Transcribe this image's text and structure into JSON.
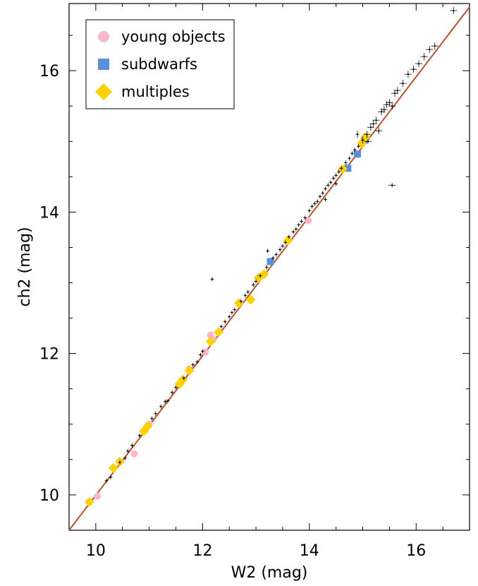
{
  "chart_data": {
    "type": "scatter",
    "title": "",
    "xlabel": "W2  (mag)",
    "ylabel": "ch2 (mag)",
    "xlim": [
      9.5,
      17.0
    ],
    "ylim": [
      9.5,
      16.95
    ],
    "x_ticks": [
      "10",
      "12",
      "14",
      "16"
    ],
    "y_ticks": [
      "10",
      "12",
      "14",
      "16"
    ],
    "grid": false,
    "legend_position": "top-left",
    "colors": {
      "young": "#f9b8c8",
      "subdwarf": "#5b8fdc",
      "multiple": "#ffd000",
      "fit_line": "#b5522a",
      "points": "#000000"
    },
    "fit_line": {
      "x": [
        9.5,
        17.0
      ],
      "y": [
        9.5,
        16.9
      ]
    },
    "series": [
      {
        "name": "young objects",
        "marker": "circle",
        "points": [
          [
            10.03,
            9.98
          ],
          [
            10.72,
            10.58
          ],
          [
            11.0,
            11.0
          ],
          [
            12.15,
            12.26
          ],
          [
            12.05,
            12.02
          ],
          [
            11.75,
            11.78
          ],
          [
            13.98,
            13.88
          ],
          [
            12.2,
            12.2
          ]
        ]
      },
      {
        "name": "subdwarfs",
        "marker": "square",
        "points": [
          [
            13.27,
            13.3
          ],
          [
            14.72,
            14.62
          ],
          [
            14.9,
            14.82
          ],
          [
            15.03,
            15.02
          ]
        ]
      },
      {
        "name": "multiples",
        "marker": "diamond",
        "points": [
          [
            9.88,
            9.9
          ],
          [
            10.33,
            10.38
          ],
          [
            10.45,
            10.47
          ],
          [
            10.9,
            10.9
          ],
          [
            10.97,
            10.97
          ],
          [
            11.57,
            11.57
          ],
          [
            11.63,
            11.63
          ],
          [
            11.75,
            11.76
          ],
          [
            12.15,
            12.17
          ],
          [
            12.3,
            12.3
          ],
          [
            12.68,
            12.71
          ],
          [
            12.9,
            12.76
          ],
          [
            13.05,
            13.07
          ],
          [
            13.15,
            13.12
          ],
          [
            13.6,
            13.6
          ],
          [
            14.62,
            14.61
          ],
          [
            14.98,
            14.97
          ],
          [
            15.05,
            15.06
          ]
        ]
      },
      {
        "name": "",
        "marker": "errorbar-point",
        "points": [
          [
            10.2,
            10.2
          ],
          [
            10.28,
            10.25
          ],
          [
            10.45,
            10.46
          ],
          [
            10.55,
            10.52
          ],
          [
            10.6,
            10.62
          ],
          [
            10.68,
            10.7
          ],
          [
            10.82,
            10.84
          ],
          [
            11.05,
            11.08
          ],
          [
            11.12,
            11.15
          ],
          [
            11.22,
            11.25
          ],
          [
            11.3,
            11.32
          ],
          [
            11.35,
            11.33
          ],
          [
            11.43,
            11.45
          ],
          [
            11.5,
            11.52
          ],
          [
            11.65,
            11.65
          ],
          [
            11.82,
            11.84
          ],
          [
            11.9,
            11.88
          ],
          [
            11.96,
            11.98
          ],
          [
            12.0,
            12.03
          ],
          [
            12.18,
            13.05
          ],
          [
            12.35,
            12.38
          ],
          [
            12.42,
            12.45
          ],
          [
            12.5,
            12.52
          ],
          [
            12.55,
            12.58
          ],
          [
            12.6,
            12.62
          ],
          [
            12.72,
            12.74
          ],
          [
            12.8,
            12.82
          ],
          [
            12.85,
            12.87
          ],
          [
            12.95,
            12.97
          ],
          [
            13.0,
            13.02
          ],
          [
            13.08,
            13.1
          ],
          [
            13.2,
            13.22
          ],
          [
            13.22,
            13.45
          ],
          [
            13.32,
            13.35
          ],
          [
            13.38,
            13.4
          ],
          [
            13.45,
            13.47
          ],
          [
            13.5,
            13.52
          ],
          [
            13.55,
            13.57
          ],
          [
            13.62,
            13.65
          ],
          [
            13.7,
            13.72
          ],
          [
            13.75,
            13.76
          ],
          [
            13.8,
            13.82
          ],
          [
            13.85,
            13.87
          ],
          [
            13.92,
            13.92
          ],
          [
            14.0,
            14.02
          ],
          [
            14.05,
            14.08
          ],
          [
            14.1,
            14.12
          ],
          [
            14.15,
            14.15
          ],
          [
            14.2,
            14.22
          ],
          [
            14.25,
            14.27
          ],
          [
            14.3,
            14.33
          ],
          [
            14.35,
            14.38
          ],
          [
            14.4,
            14.42
          ],
          [
            14.45,
            14.48
          ],
          [
            14.5,
            14.52
          ],
          [
            14.55,
            14.57
          ],
          [
            14.6,
            14.62
          ],
          [
            14.68,
            14.7
          ],
          [
            14.75,
            14.76
          ],
          [
            14.8,
            14.83
          ],
          [
            14.85,
            14.88
          ],
          [
            14.92,
            14.93
          ],
          [
            15.0,
            15.02
          ],
          [
            15.08,
            15.1
          ],
          [
            15.15,
            15.2
          ],
          [
            15.2,
            15.25
          ],
          [
            15.25,
            15.3
          ],
          [
            15.35,
            15.42
          ],
          [
            15.4,
            15.45
          ],
          [
            15.45,
            15.52
          ],
          [
            15.5,
            15.55
          ],
          [
            15.55,
            14.38
          ],
          [
            15.6,
            15.68
          ],
          [
            15.65,
            15.72
          ],
          [
            15.75,
            15.82
          ],
          [
            15.85,
            15.95
          ],
          [
            15.95,
            16.02
          ],
          [
            16.05,
            16.1
          ],
          [
            16.15,
            16.2
          ],
          [
            16.25,
            16.3
          ],
          [
            16.35,
            16.35
          ],
          [
            16.7,
            16.85
          ],
          [
            14.3,
            14.18
          ],
          [
            14.5,
            14.4
          ],
          [
            14.9,
            15.1
          ],
          [
            15.3,
            15.15
          ],
          [
            15.55,
            15.5
          ],
          [
            15.1,
            15.0
          ]
        ]
      }
    ]
  },
  "legend": {
    "items": [
      {
        "label": "young objects"
      },
      {
        "label": "subdwarfs"
      },
      {
        "label": "multiples"
      }
    ]
  }
}
